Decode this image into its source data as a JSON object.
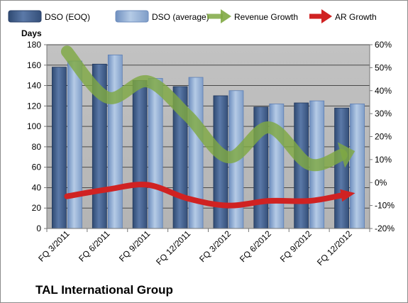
{
  "chart_data": {
    "type": "bar",
    "title": "TAL International Group",
    "ylabel": "Days",
    "ylim": [
      0,
      180
    ],
    "ylim_right": [
      -20,
      60
    ],
    "y_ticks": [
      "0",
      "20",
      "40",
      "60",
      "80",
      "100",
      "120",
      "140",
      "160",
      "180"
    ],
    "y2_ticks": [
      "-20%",
      "-10%",
      "0%",
      "10%",
      "20%",
      "30%",
      "40%",
      "50%",
      "60%"
    ],
    "grid": true,
    "legend_position": "top",
    "categories": [
      "FQ 3/2011",
      "FQ 6/2011",
      "FQ 9/2011",
      "FQ 12/2011",
      "FQ 3/2012",
      "FQ 6/2012",
      "FQ 9/2012",
      "FQ 12/2012"
    ],
    "series": [
      {
        "name": "DSO (EOQ)",
        "type": "bar",
        "axis": "left",
        "values": [
          158,
          161,
          145,
          139,
          130,
          119,
          123,
          118
        ]
      },
      {
        "name": "DSO (average)",
        "type": "bar",
        "axis": "left",
        "values": [
          164,
          170,
          147,
          148,
          135,
          122,
          125,
          122
        ]
      },
      {
        "name": "Revenue Growth",
        "type": "line",
        "axis": "right",
        "unit": "%",
        "values": [
          57,
          37,
          44,
          29,
          11,
          24,
          8,
          13
        ]
      },
      {
        "name": "AR Growth",
        "type": "line",
        "axis": "right",
        "unit": "%",
        "values": [
          -6,
          -3,
          -1,
          -7,
          -10,
          -8,
          -8,
          -5
        ]
      }
    ],
    "colors": {
      "dso_eoq": "#4a6591",
      "dso_avg": "#95b3d7",
      "revenue_growth": "#7fa843",
      "ar_growth": "#d02222",
      "plot_bg": "#bdbdbd"
    }
  }
}
